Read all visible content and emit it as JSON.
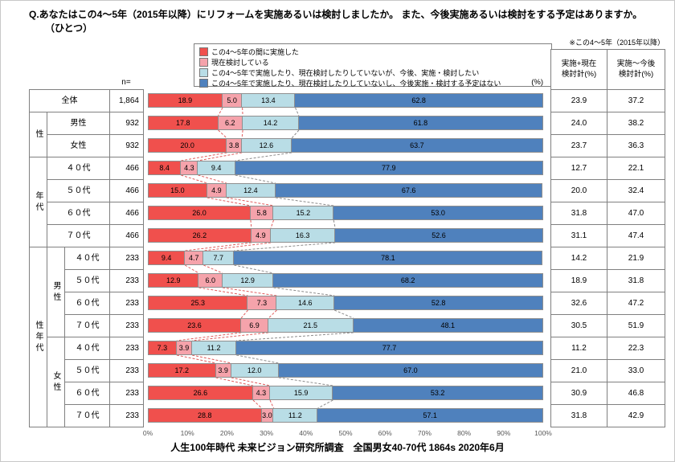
{
  "title": "Q.あなたはこの4〜5年（2015年以降）にリフォームを実施あるいは検討しましたか。 また、今後実施あるいは検討をする予定はありますか。",
  "title_line2": "（ひとつ）",
  "note": "※この4〜5年（2015年以降）",
  "n_label": "n=",
  "pct_label": "(%)",
  "caption": "人生100年時代 未来ビジョン研究所調査　全国男女40-70代 1864s  2020年6月",
  "summary_headers": [
    {
      "line1": "実施+現在",
      "line2": "検討計(%)"
    },
    {
      "line1": "実施〜今後",
      "line2": "検討計(%)"
    }
  ],
  "legend": [
    {
      "label": "この4〜5年の間に実施した",
      "color": "#f0504d"
    },
    {
      "label": "現在検討している",
      "color": "#f5a3ab"
    },
    {
      "label": "この4〜5年で実施したり、現在検討したりしていないが、今後、実施・検討したい",
      "color": "#b9dde6"
    },
    {
      "label": "この4〜5年で実施したり、現在検討したりしていないし、今後実施・検討する予定はない",
      "color": "#4f81bd"
    }
  ],
  "chart_data": {
    "type": "bar",
    "stacked": true,
    "orientation": "horizontal",
    "xlim": [
      0,
      100
    ],
    "series_names": [
      "この4〜5年の間に実施した",
      "現在検討している",
      "この4〜5年で実施したり、現在検討したりしていないが、今後、実施・検討したい",
      "この4〜5年で実施したり、現在検討したりしていないし、今後実施・検討する予定はない"
    ],
    "x_ticks": [
      "0%",
      "10%",
      "20%",
      "30%",
      "40%",
      "50%",
      "60%",
      "70%",
      "80%",
      "90%",
      "100%"
    ],
    "connector_colors": {
      "red": "#e05c5c",
      "gray": "#8c8c8c"
    },
    "rows": [
      {
        "group": "全体",
        "subgroup": "",
        "label": "全体",
        "n": "1,864",
        "values": [
          18.9,
          5.0,
          13.4,
          62.8
        ],
        "sum_current": "23.9",
        "sum_future": "37.2"
      },
      {
        "group": "性",
        "subgroup": "",
        "label": "男性",
        "n": "932",
        "values": [
          17.8,
          6.2,
          14.2,
          61.8
        ],
        "sum_current": "24.0",
        "sum_future": "38.2"
      },
      {
        "group": "性",
        "subgroup": "",
        "label": "女性",
        "n": "932",
        "values": [
          20.0,
          3.8,
          12.6,
          63.7
        ],
        "sum_current": "23.7",
        "sum_future": "36.3"
      },
      {
        "group": "年代",
        "subgroup": "",
        "label": "４０代",
        "n": "466",
        "values": [
          8.4,
          4.3,
          9.4,
          77.9
        ],
        "sum_current": "12.7",
        "sum_future": "22.1"
      },
      {
        "group": "年代",
        "subgroup": "",
        "label": "５０代",
        "n": "466",
        "values": [
          15.0,
          4.9,
          12.4,
          67.6
        ],
        "sum_current": "20.0",
        "sum_future": "32.4"
      },
      {
        "group": "年代",
        "subgroup": "",
        "label": "６０代",
        "n": "466",
        "values": [
          26.0,
          5.8,
          15.2,
          53.0
        ],
        "sum_current": "31.8",
        "sum_future": "47.0"
      },
      {
        "group": "年代",
        "subgroup": "",
        "label": "７０代",
        "n": "466",
        "values": [
          26.2,
          4.9,
          16.3,
          52.6
        ],
        "sum_current": "31.1",
        "sum_future": "47.4"
      },
      {
        "group": "性年代",
        "subgroup": "男性",
        "label": "４０代",
        "n": "233",
        "values": [
          9.4,
          4.7,
          7.7,
          78.1
        ],
        "sum_current": "14.2",
        "sum_future": "21.9"
      },
      {
        "group": "性年代",
        "subgroup": "男性",
        "label": "５０代",
        "n": "233",
        "values": [
          12.9,
          6.0,
          12.9,
          68.2
        ],
        "sum_current": "18.9",
        "sum_future": "31.8"
      },
      {
        "group": "性年代",
        "subgroup": "男性",
        "label": "６０代",
        "n": "233",
        "values": [
          25.3,
          7.3,
          14.6,
          52.8
        ],
        "sum_current": "32.6",
        "sum_future": "47.2"
      },
      {
        "group": "性年代",
        "subgroup": "男性",
        "label": "７０代",
        "n": "233",
        "values": [
          23.6,
          6.9,
          21.5,
          48.1
        ],
        "sum_current": "30.5",
        "sum_future": "51.9"
      },
      {
        "group": "性年代",
        "subgroup": "女性",
        "label": "４０代",
        "n": "233",
        "values": [
          7.3,
          3.9,
          11.2,
          77.7
        ],
        "sum_current": "11.2",
        "sum_future": "22.3"
      },
      {
        "group": "性年代",
        "subgroup": "女性",
        "label": "５０代",
        "n": "233",
        "values": [
          17.2,
          3.9,
          12.0,
          67.0
        ],
        "sum_current": "21.0",
        "sum_future": "33.0"
      },
      {
        "group": "性年代",
        "subgroup": "女性",
        "label": "６０代",
        "n": "233",
        "values": [
          26.6,
          4.3,
          15.9,
          53.2
        ],
        "sum_current": "30.9",
        "sum_future": "46.8"
      },
      {
        "group": "性年代",
        "subgroup": "女性",
        "label": "７０代",
        "n": "233",
        "values": [
          28.8,
          3.0,
          11.2,
          57.1
        ],
        "sum_current": "31.8",
        "sum_future": "42.9"
      }
    ],
    "group_cells": [
      {
        "text": "全体",
        "col": 0,
        "colspan": 3,
        "row": 0,
        "rowspan": 1,
        "vertical": false
      },
      {
        "text": "性",
        "col": 0,
        "colspan": 1,
        "row": 1,
        "rowspan": 2,
        "vertical": true
      },
      {
        "text": "男性",
        "col": 1,
        "colspan": 2,
        "row": 1,
        "rowspan": 1,
        "vertical": false
      },
      {
        "text": "女性",
        "col": 1,
        "colspan": 2,
        "row": 2,
        "rowspan": 1,
        "vertical": false
      },
      {
        "text": "年代",
        "col": 0,
        "colspan": 1,
        "row": 3,
        "rowspan": 4,
        "vertical": true
      },
      {
        "text": "４０代",
        "col": 1,
        "colspan": 2,
        "row": 3,
        "rowspan": 1,
        "vertical": false
      },
      {
        "text": "５０代",
        "col": 1,
        "colspan": 2,
        "row": 4,
        "rowspan": 1,
        "vertical": false
      },
      {
        "text": "６０代",
        "col": 1,
        "colspan": 2,
        "row": 5,
        "rowspan": 1,
        "vertical": false
      },
      {
        "text": "７０代",
        "col": 1,
        "colspan": 2,
        "row": 6,
        "rowspan": 1,
        "vertical": false
      },
      {
        "text": "性年代",
        "col": 0,
        "colspan": 1,
        "row": 7,
        "rowspan": 8,
        "vertical": true
      },
      {
        "text": "男性",
        "col": 1,
        "colspan": 1,
        "row": 7,
        "rowspan": 4,
        "vertical": true
      },
      {
        "text": "４０代",
        "col": 2,
        "colspan": 1,
        "row": 7,
        "rowspan": 1,
        "vertical": false
      },
      {
        "text": "５０代",
        "col": 2,
        "colspan": 1,
        "row": 8,
        "rowspan": 1,
        "vertical": false
      },
      {
        "text": "６０代",
        "col": 2,
        "colspan": 1,
        "row": 9,
        "rowspan": 1,
        "vertical": false
      },
      {
        "text": "７０代",
        "col": 2,
        "colspan": 1,
        "row": 10,
        "rowspan": 1,
        "vertical": false
      },
      {
        "text": "女性",
        "col": 1,
        "colspan": 1,
        "row": 11,
        "rowspan": 4,
        "vertical": true
      },
      {
        "text": "４０代",
        "col": 2,
        "colspan": 1,
        "row": 11,
        "rowspan": 1,
        "vertical": false
      },
      {
        "text": "５０代",
        "col": 2,
        "colspan": 1,
        "row": 12,
        "rowspan": 1,
        "vertical": false
      },
      {
        "text": "６０代",
        "col": 2,
        "colspan": 1,
        "row": 13,
        "rowspan": 1,
        "vertical": false
      },
      {
        "text": "７０代",
        "col": 2,
        "colspan": 1,
        "row": 14,
        "rowspan": 1,
        "vertical": false
      }
    ]
  }
}
